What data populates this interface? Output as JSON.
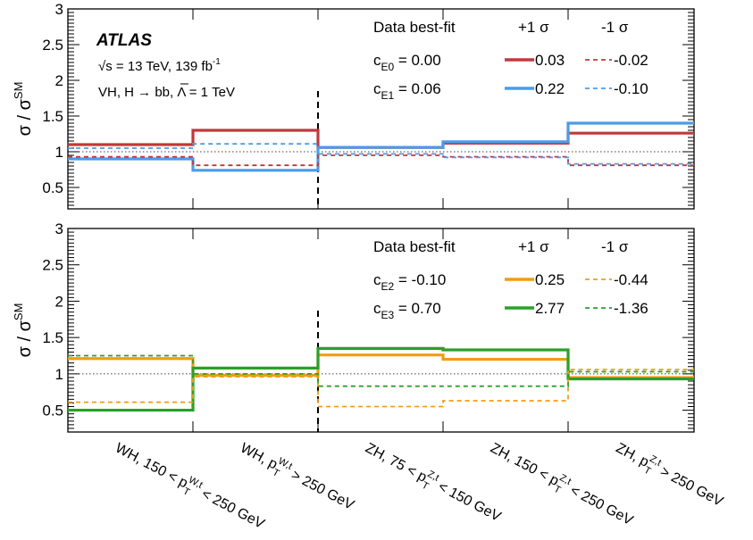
{
  "chart_data": [
    {
      "type": "step",
      "ylabel": "σ / σ",
      "ylabel_sup": "SM",
      "ylim": [
        0.2,
        3.0
      ],
      "yticks": [
        "0.5",
        "1",
        "1.5",
        "2",
        "2.5",
        "3"
      ],
      "bins": 5,
      "atlas_label": "ATLAS",
      "info_lines": [
        "√s = 13 TeV, 139 fb",
        "VH, H → bb, Λ = 1 TeV"
      ],
      "info_lumi_sup": "-1",
      "legend": {
        "header": "Data best-fit",
        "col_plus": "+1 σ",
        "col_minus": "-1 σ",
        "params": [
          {
            "name": "c",
            "sub": "E0",
            "value": "= 0.00"
          },
          {
            "name": "c",
            "sub": "E1",
            "value": "= 0.06"
          }
        ]
      },
      "series": [
        {
          "label": "0.03",
          "color": "#c0393b",
          "style": "solid",
          "values": [
            1.1,
            1.3,
            1.06,
            1.12,
            1.26
          ]
        },
        {
          "label": "0.22",
          "color": "#4a9ce8",
          "style": "solid",
          "values": [
            0.9,
            0.74,
            1.06,
            1.14,
            1.4
          ]
        },
        {
          "label": "-0.02",
          "color": "#c0393b",
          "style": "dashed",
          "values": [
            0.93,
            0.81,
            0.95,
            0.93,
            0.81
          ]
        },
        {
          "label": "-0.10",
          "color": "#4a9ce8",
          "style": "dashed",
          "values": [
            1.05,
            1.11,
            0.97,
            0.92,
            0.83
          ]
        }
      ]
    },
    {
      "type": "step",
      "ylabel": "σ / σ",
      "ylabel_sup": "SM",
      "ylim": [
        0.2,
        3.0
      ],
      "yticks": [
        "0.5",
        "1",
        "1.5",
        "2",
        "2.5",
        "3"
      ],
      "bins": 5,
      "xlabels": [
        "WH, 150 < p_T^{W,t} < 250 GeV",
        "WH, p_T^{W,t} > 250 GeV",
        "ZH, 75 < p_T^{Z,t} < 150 GeV",
        "ZH, 150 < p_T^{Z,t} < 250 GeV",
        "ZH, p_T^{Z,t} > 250 GeV"
      ],
      "legend": {
        "header": "Data best-fit",
        "col_plus": "+1 σ",
        "col_minus": "-1 σ",
        "params": [
          {
            "name": "c",
            "sub": "E2",
            "value": "= -0.10"
          },
          {
            "name": "c",
            "sub": "E3",
            "value": "= 0.70"
          }
        ]
      },
      "series": [
        {
          "label": "0.25",
          "color": "#f39c12",
          "style": "solid",
          "values": [
            1.21,
            0.98,
            1.26,
            1.2,
            0.95
          ]
        },
        {
          "label": "2.77",
          "color": "#2aa02a",
          "style": "solid",
          "values": [
            0.5,
            1.08,
            1.35,
            1.33,
            0.93
          ]
        },
        {
          "label": "-0.44",
          "color": "#f39c12",
          "style": "dashed",
          "values": [
            0.61,
            0.96,
            0.55,
            0.63,
            1.06
          ]
        },
        {
          "label": "-1.36",
          "color": "#2aa02a",
          "style": "dashed",
          "values": [
            1.25,
            1.0,
            0.83,
            0.83,
            1.03
          ]
        }
      ]
    }
  ]
}
